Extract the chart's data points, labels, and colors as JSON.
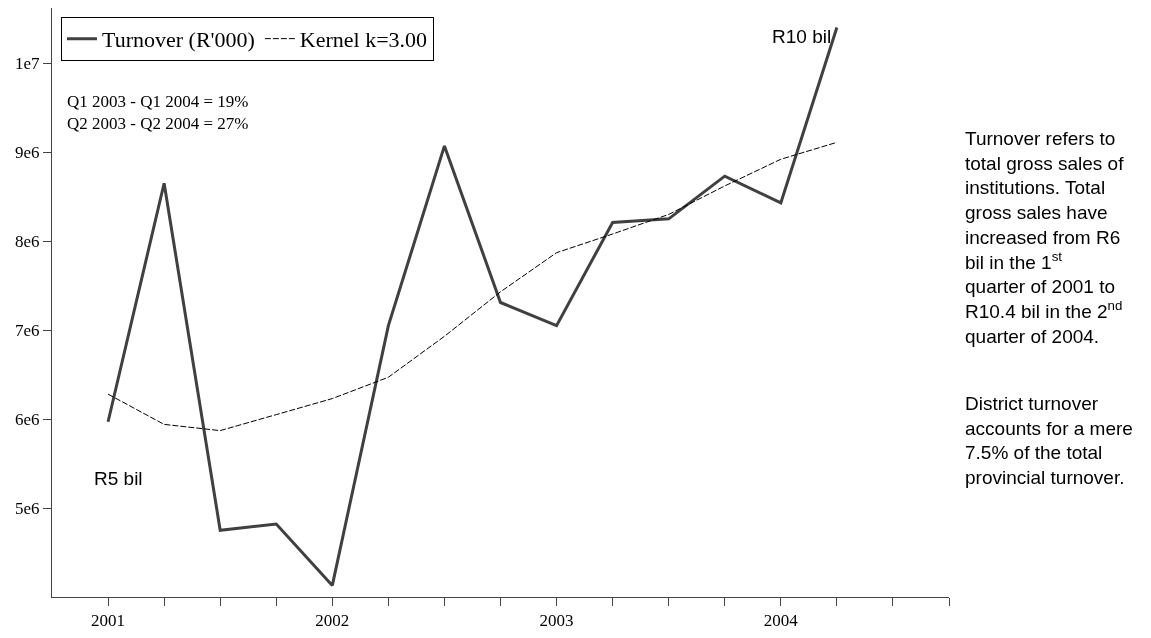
{
  "chart_data": {
    "type": "line",
    "x": [
      2001,
      2001.25,
      2001.5,
      2001.75,
      2002,
      2002.25,
      2002.5,
      2002.75,
      2003,
      2003.25,
      2003.5,
      2003.75,
      2004,
      2004.25
    ],
    "series": [
      {
        "name": "Turnover (R'000)",
        "color": "#404040",
        "line_style": "solid",
        "values": [
          5970000,
          8650000,
          4750000,
          4820000,
          4130000,
          7050000,
          9070000,
          7310000,
          7050000,
          8210000,
          8250000,
          8730000,
          8430000,
          10400000
        ]
      },
      {
        "name": "Kernel k=3.00",
        "color": "#000000",
        "line_style": "dashed",
        "values": [
          6280000,
          5940000,
          5870000,
          6050000,
          6230000,
          6470000,
          6930000,
          7430000,
          7870000,
          8080000,
          8300000,
          8620000,
          8920000,
          9110000
        ]
      }
    ],
    "xlim": [
      2000.75,
      2004.75
    ],
    "xticks": [
      2001,
      {
        "value": 2001.25,
        "label": null
      },
      {
        "value": 2001.5,
        "label": null
      },
      {
        "value": 2001.75,
        "label": null
      },
      2002,
      {
        "value": 2002.25,
        "label": null
      },
      {
        "value": 2002.5,
        "label": null
      },
      {
        "value": 2002.75,
        "label": null
      },
      2003,
      {
        "value": 2003.25,
        "label": null
      },
      {
        "value": 2003.5,
        "label": null
      },
      {
        "value": 2003.75,
        "label": null
      },
      2004,
      {
        "value": 2004.25,
        "label": null
      },
      {
        "value": 2004.5,
        "label": null
      },
      {
        "value": 2004.75,
        "label": null
      }
    ],
    "ylim": [
      4000000,
      10620000
    ],
    "yticks": [
      {
        "value": 5000000,
        "label": "5e6"
      },
      {
        "value": 6000000,
        "label": "6e6"
      },
      {
        "value": 7000000,
        "label": "7e6"
      },
      {
        "value": 8000000,
        "label": "8e6"
      },
      {
        "value": 9000000,
        "label": "9e6"
      },
      {
        "value": 10000000,
        "label": "1e7"
      }
    ],
    "legend": "top left",
    "marker": "none",
    "annotations": [
      "Q1 2003 - Q1 2004 = 19%\nQ2 2003 - Q2 2004 = 27%",
      "R5 bil",
      "R10 bil",
      "Turnover refers to total gross sales of institutions. Total gross sales have increased from R6 bil in the 1$^{st}$ quarter of 2001 to R10.4 bil in the 2$^{nd}$ quarter of 2004.",
      "District turnover accounts for a mere 7.5% of the total provincial turnover."
    ]
  }
}
